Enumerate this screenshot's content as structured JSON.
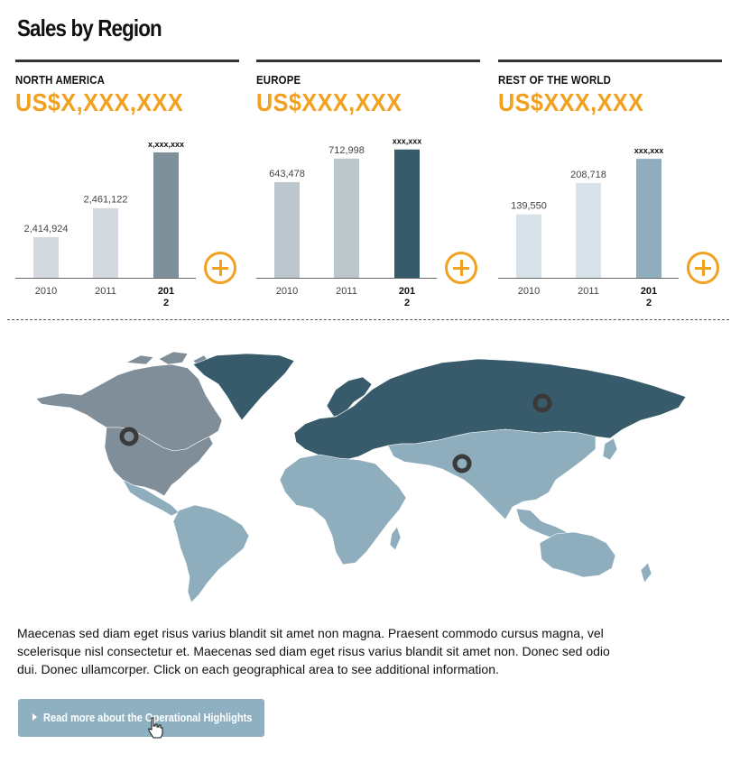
{
  "page": {
    "title": "Sales by Region"
  },
  "chart_data": [
    {
      "type": "bar",
      "region": "NORTH AMERICA",
      "amount": "US$X,XXX,XXX",
      "categories": [
        "2010",
        "2011",
        "201\n2"
      ],
      "values": [
        2414924,
        2461122,
        2550000
      ],
      "value_labels": [
        "2,414,924",
        "2,461,122",
        "x,xxx,xxx"
      ],
      "colors": [
        "#d5dae1",
        "#d5dae1",
        "#7f909b"
      ],
      "ylim": [
        2350000,
        2560000
      ]
    },
    {
      "type": "bar",
      "region": "EUROPE",
      "amount": "US$XXX,XXX",
      "categories": [
        "2010",
        "2011",
        "201\n2"
      ],
      "values": [
        643478,
        712998,
        740000
      ],
      "value_labels": [
        "643,478",
        "712,998",
        "xxx,xxx"
      ],
      "colors": [
        "#bcc7cd",
        "#bcc7cd",
        "#385b6b"
      ],
      "ylim": [
        360000,
        750000
      ]
    },
    {
      "type": "bar",
      "region": "REST OF THE WORLD",
      "amount": "US$XXX,XXX",
      "categories": [
        "2010",
        "2011",
        "201\n2"
      ],
      "values": [
        139550,
        208718,
        262000
      ],
      "value_labels": [
        "139,550",
        "208,718",
        "xxx,xxx"
      ],
      "colors": [
        "#d7e3e8",
        "#d7e3e8",
        "#8faebd"
      ],
      "ylim": [
        0,
        290000
      ]
    }
  ],
  "map": {
    "colors": {
      "north_america": "#808e99",
      "europe_russia": "#385b6b",
      "rest_of_world": "#8faebd"
    },
    "markers": [
      "north-america-marker",
      "europe-marker",
      "asia-marker"
    ]
  },
  "body": {
    "text": "Maecenas sed diam eget risus varius blandit sit amet non magna. Praesent commodo cursus magna, vel scelerisque nisl consectetur et. Maecenas sed diam eget risus varius blandit sit amet non. Donec sed odio dui. Donec ullamcorper. Click on each geographical area to see additional information."
  },
  "cta": {
    "label": "Read more about the Operational Highlights"
  },
  "colors": {
    "accent": "#f2a11f",
    "button": "#8fb0c0",
    "rule": "#333333"
  }
}
